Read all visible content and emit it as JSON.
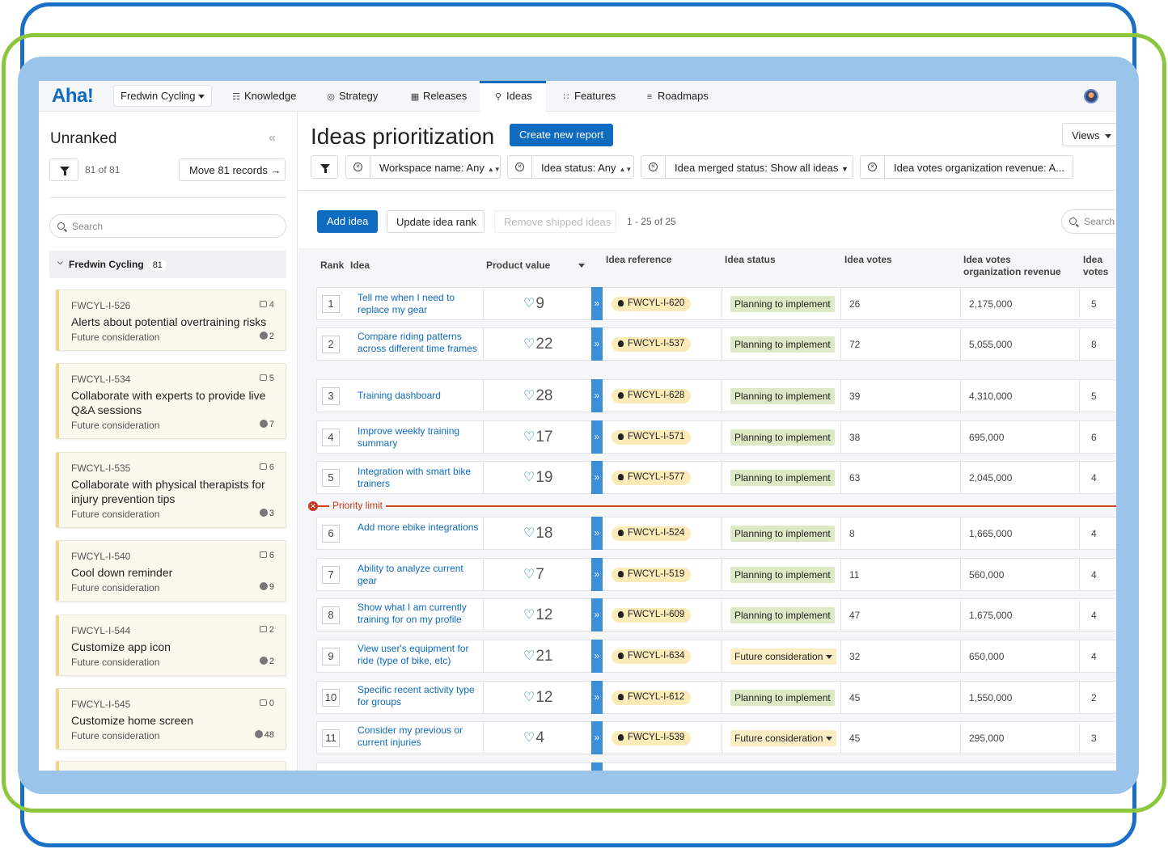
{
  "app": {
    "logo": "Aha!",
    "workspace": "Fredwin Cycling",
    "nav": [
      {
        "label": "Knowledge",
        "icon": "book-icon"
      },
      {
        "label": "Strategy",
        "icon": "target-icon"
      },
      {
        "label": "Releases",
        "icon": "calendar-icon"
      },
      {
        "label": "Ideas",
        "icon": "lightbulb-icon"
      },
      {
        "label": "Features",
        "icon": "grid-icon"
      },
      {
        "label": "Roadmaps",
        "icon": "roadmap-icon"
      }
    ],
    "active_nav": "Ideas"
  },
  "left": {
    "title": "Unranked",
    "count": "81 of 81",
    "move_label": "Move 81 records",
    "search_placeholder": "Search",
    "group": {
      "name": "Fredwin Cycling",
      "count": "81"
    },
    "cards": [
      {
        "ref": "FWCYL-I-526",
        "votes": "4",
        "title": "Alerts about potential overtraining risks",
        "status": "Future consideration",
        "score": "2"
      },
      {
        "ref": "FWCYL-I-534",
        "votes": "5",
        "title": "Collaborate with experts to provide live Q&A sessions",
        "status": "Future consideration",
        "score": "7"
      },
      {
        "ref": "FWCYL-I-535",
        "votes": "6",
        "title": "Collaborate with physical therapists for injury prevention tips",
        "status": "Future consideration",
        "score": "3"
      },
      {
        "ref": "FWCYL-I-540",
        "votes": "6",
        "title": "Cool down reminder",
        "status": "Future consideration",
        "score": "9"
      },
      {
        "ref": "FWCYL-I-544",
        "votes": "2",
        "title": "Customize app icon",
        "status": "Future consideration",
        "score": "2"
      },
      {
        "ref": "FWCYL-I-545",
        "votes": "0",
        "title": "Customize home screen",
        "status": "Future consideration",
        "score": "48"
      }
    ]
  },
  "main": {
    "title": "Ideas prioritization",
    "create_label": "Create new report",
    "views_label": "Views",
    "filters": [
      "Workspace name: Any",
      "Idea status: Any",
      "Idea merged status: Show all ideas",
      "Idea votes organization revenue: A..."
    ],
    "add_label": "Add idea",
    "update_label": "Update idea rank",
    "remove_label": "Remove shipped ideas",
    "range": "1 - 25 of 25",
    "search_placeholder": "Search",
    "columns": {
      "rank": "Rank",
      "idea": "Idea",
      "pv": "Product value",
      "ref": "Idea reference",
      "status": "Idea status",
      "votes": "Idea votes",
      "rev": "Idea votes organization revenue",
      "org": "Idea votes organiz"
    },
    "priority_limit": "Priority limit",
    "rows": [
      {
        "rank": "1",
        "idea": "Tell me when I need to replace my gear",
        "pv": "9",
        "ref": "FWCYL-I-620",
        "status": "Planning to implement",
        "votes": "26",
        "rev": "2,175,000",
        "org": "5"
      },
      {
        "rank": "2",
        "idea": "Compare riding patterns across different time frames",
        "pv": "22",
        "ref": "FWCYL-I-537",
        "status": "Planning to implement",
        "votes": "72",
        "rev": "5,055,000",
        "org": "8"
      },
      {
        "rank": "3",
        "idea": "Training dashboard",
        "pv": "28",
        "ref": "FWCYL-I-628",
        "status": "Planning to implement",
        "votes": "39",
        "rev": "4,310,000",
        "org": "5"
      },
      {
        "rank": "4",
        "idea": "Improve weekly training summary",
        "pv": "17",
        "ref": "FWCYL-I-571",
        "status": "Planning to implement",
        "votes": "38",
        "rev": "695,000",
        "org": "6"
      },
      {
        "rank": "5",
        "idea": "Integration with smart bike trainers",
        "pv": "19",
        "ref": "FWCYL-I-577",
        "status": "Planning to implement",
        "votes": "63",
        "rev": "2,045,000",
        "org": "4"
      },
      {
        "rank": "6",
        "idea": "Add more ebike integrations",
        "pv": "18",
        "ref": "FWCYL-I-524",
        "status": "Planning to implement",
        "votes": "8",
        "rev": "1,665,000",
        "org": "4"
      },
      {
        "rank": "7",
        "idea": "Ability to analyze current gear",
        "pv": "7",
        "ref": "FWCYL-I-519",
        "status": "Planning to implement",
        "votes": "11",
        "rev": "560,000",
        "org": "4"
      },
      {
        "rank": "8",
        "idea": "Show what I am currently training for on my profile",
        "pv": "12",
        "ref": "FWCYL-I-609",
        "status": "Planning to implement",
        "votes": "47",
        "rev": "1,675,000",
        "org": "4"
      },
      {
        "rank": "9",
        "idea": "View user's equipment for ride (type of bike, etc)",
        "pv": "21",
        "ref": "FWCYL-I-634",
        "status": "Future consideration",
        "votes": "32",
        "rev": "650,000",
        "org": "4"
      },
      {
        "rank": "10",
        "idea": "Specific recent activity type for groups",
        "pv": "12",
        "ref": "FWCYL-I-612",
        "status": "Planning to implement",
        "votes": "45",
        "rev": "1,550,000",
        "org": "2"
      },
      {
        "rank": "11",
        "idea": "Consider my previous or current injuries",
        "pv": "4",
        "ref": "FWCYL-I-539",
        "status": "Future consideration",
        "votes": "45",
        "rev": "295,000",
        "org": "3"
      }
    ]
  }
}
